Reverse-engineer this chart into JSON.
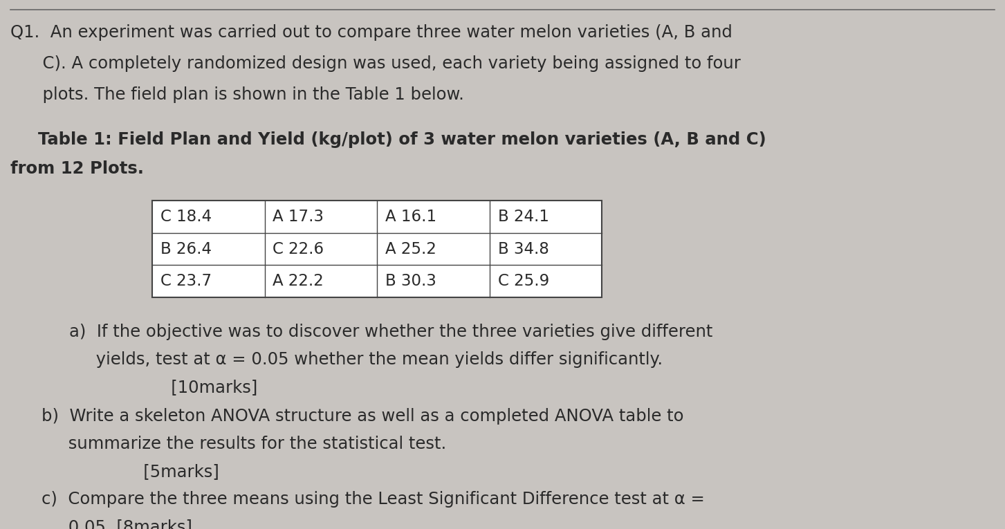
{
  "background_color": "#c8c4c0",
  "text_color": "#2a2a2a",
  "fig_width": 14.53,
  "fig_height": 7.65,
  "table_data": [
    [
      "C 18.4",
      "A 17.3",
      "A 16.1",
      "B 24.1"
    ],
    [
      "B 26.4",
      "C 22.6",
      "A 25.2",
      "B 34.8"
    ],
    [
      "C 23.7",
      "A 22.2",
      "B 30.3",
      "C 25.9"
    ]
  ],
  "font_size_main": 17.5,
  "font_size_table": 16.5,
  "font_size_title_bold": 17.5
}
